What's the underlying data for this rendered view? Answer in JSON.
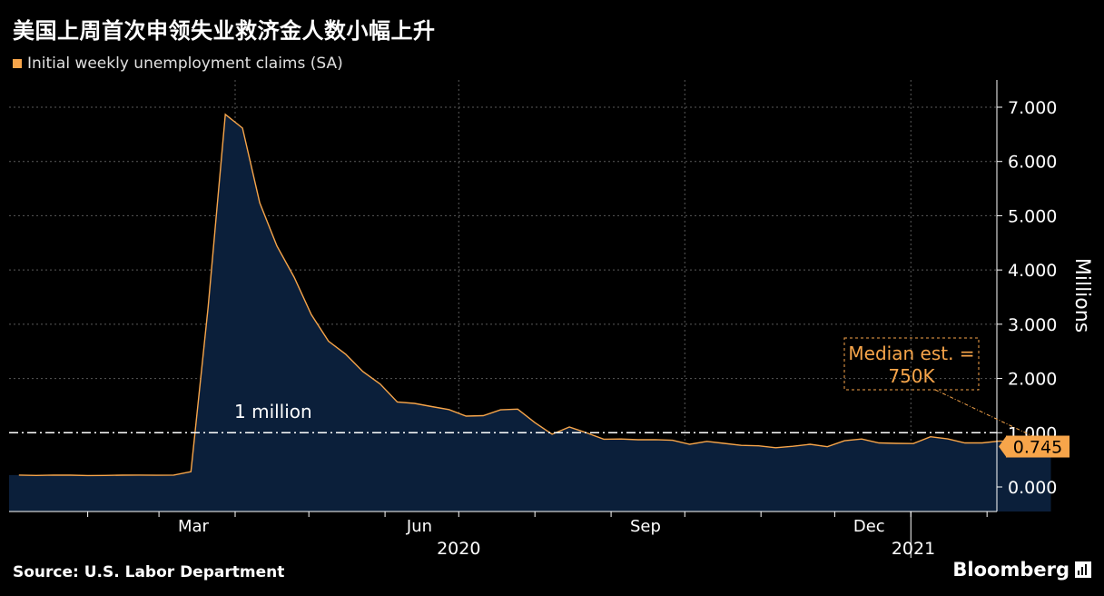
{
  "title": "美国上周首次申领失业救济金人数小幅上升",
  "source": "Source: U.S. Labor Department",
  "brand": "Bloomberg",
  "chart_data": {
    "type": "area",
    "series": [
      {
        "name": "Initial weekly unemployment claims (SA)",
        "color": "#f7a54a",
        "fill": "#0b1f3a",
        "values": [
          0.22,
          0.212,
          0.219,
          0.217,
          0.211,
          0.212,
          0.217,
          0.219,
          0.216,
          0.22,
          0.281,
          3.307,
          6.867,
          6.615,
          5.237,
          4.442,
          3.867,
          3.176,
          2.687,
          2.446,
          2.126,
          1.897,
          1.566,
          1.54,
          1.482,
          1.427,
          1.307,
          1.314,
          1.422,
          1.435,
          1.186,
          0.971,
          1.106,
          0.998,
          0.881,
          0.884,
          0.87,
          0.873,
          0.86,
          0.787,
          0.84,
          0.804,
          0.767,
          0.758,
          0.723,
          0.751,
          0.787,
          0.742,
          0.853,
          0.885,
          0.812,
          0.803,
          0.8,
          0.926,
          0.886,
          0.812,
          0.812,
          0.848,
          0.837,
          0.736,
          0.745
        ]
      }
    ],
    "x_start": "2020-01-04",
    "x_step_days": 7,
    "month_ticks": [
      "Mar",
      "Jun",
      "Sep",
      "Dec"
    ],
    "year_labels": [
      "2020",
      "2021"
    ],
    "y_ticks": [
      "0.000",
      "1.000",
      "2.000",
      "3.000",
      "4.000",
      "5.000",
      "6.000",
      "7.000"
    ],
    "ylim": [
      -0.45,
      7.45
    ],
    "ylabel": "Millions",
    "reference_line": {
      "value": 1.0,
      "label": "1 million"
    },
    "annotation": {
      "lines": [
        "Median est. =",
        "750K"
      ],
      "value": 0.75
    },
    "last_value_label": "0.745",
    "grid": true,
    "axis_side": "right"
  }
}
